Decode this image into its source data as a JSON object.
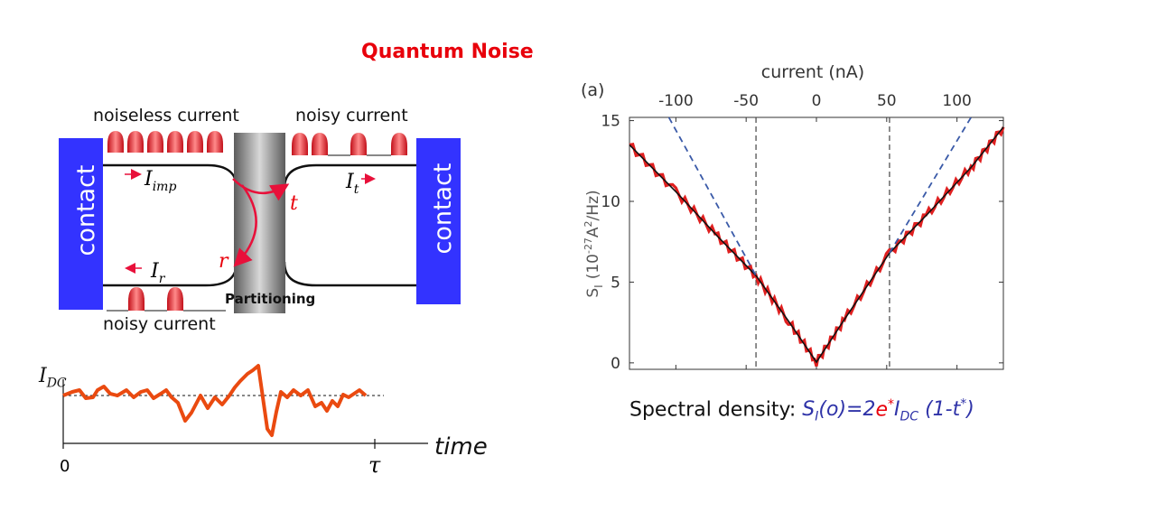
{
  "title": "Quantum Noise",
  "diagram": {
    "contact_left": "contact",
    "contact_right": "contact",
    "noiseless_current": "noiseless current",
    "noisy_current_top": "noisy current",
    "noisy_current_bottom": "noisy current",
    "partitioning": "Partitioning",
    "i_imp": {
      "base": "I",
      "sub": "imp"
    },
    "i_t": {
      "base": "I",
      "sub": "t"
    },
    "i_r": {
      "base": "I",
      "sub": "r"
    },
    "t_label": "t",
    "r_label": "r"
  },
  "time_plot": {
    "y_label": {
      "base": "I",
      "sub": "DC"
    },
    "x_label": "time",
    "origin_label": "0",
    "end_label": "τ"
  },
  "chart_data": {
    "type": "line",
    "panel_label": "(a)",
    "top_xlabel": "current (nA)",
    "top_ticks": [
      "-100",
      "-50",
      "0",
      "50",
      "100"
    ],
    "top_tick_values": [
      -100,
      -50,
      0,
      50,
      100
    ],
    "ylabel": "S_I (10^-27 A^2/Hz)",
    "ylabel_parts": {
      "main": "S",
      "sub": "I",
      "paren": "(10",
      "exp": "-27",
      "A": "A",
      "two": "2",
      "unit": "/Hz)"
    },
    "yticks": [
      "0",
      "5",
      "10",
      "15"
    ],
    "ytick_values": [
      0,
      5,
      10,
      15
    ],
    "xlim": [
      -133,
      133
    ],
    "ylim": [
      -0.4,
      15.2
    ],
    "vlines": [
      -43,
      52
    ],
    "series": [
      {
        "name": "measured",
        "color": "#e02020",
        "x": [
          -133,
          -100,
          -70,
          -43,
          -20,
          0,
          20,
          52,
          80,
          110,
          133
        ],
        "y": [
          13.5,
          10.6,
          7.8,
          5.4,
          2.6,
          0.05,
          2.7,
          6.8,
          9.3,
          12.1,
          14.6
        ]
      },
      {
        "name": "fit",
        "color": "#111111",
        "x": [
          -133,
          -100,
          -70,
          -43,
          -20,
          0,
          20,
          52,
          80,
          110,
          133
        ],
        "y": [
          13.5,
          10.6,
          7.8,
          5.4,
          2.6,
          0.05,
          2.7,
          6.8,
          9.3,
          12.1,
          14.6
        ]
      },
      {
        "name": "poissonian-left",
        "color": "#3a5aa8",
        "dashed": true,
        "x": [
          -105,
          -43
        ],
        "y": [
          15.2,
          5.4
        ]
      },
      {
        "name": "poissonian-right",
        "color": "#3a5aa8",
        "dashed": true,
        "x": [
          52,
          110
        ],
        "y": [
          6.8,
          15.2
        ]
      }
    ]
  },
  "spectral": {
    "label": "Spectral density:",
    "formula_a": "S",
    "formula_a_sub": "I",
    "formula_b": "(o)=2",
    "formula_e": "e",
    "formula_star": "*",
    "formula_i": "I",
    "formula_i_sub": "DC",
    "formula_c": " (1-t",
    "formula_star2": "*",
    "formula_d": ")"
  }
}
